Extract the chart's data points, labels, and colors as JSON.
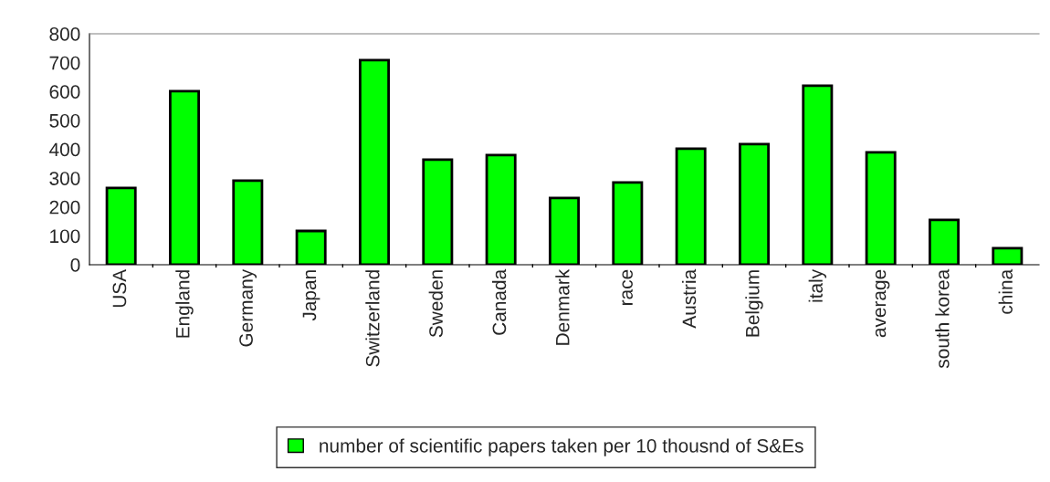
{
  "chart_data": {
    "type": "bar",
    "categories": [
      "USA",
      "England",
      "Germany",
      "Japan",
      "Switzerland",
      "Sweden",
      "Canada",
      "Denmark",
      "race",
      "Austria",
      "Belgium",
      "italy",
      "average",
      "south korea",
      "china"
    ],
    "series": [
      {
        "name": "number of scientific papers taken per 10 thousnd of S&Es",
        "color": "#00ff00",
        "values": [
          266,
          601,
          291,
          117,
          709,
          364,
          380,
          231,
          285,
          402,
          418,
          620,
          389,
          155,
          57
        ]
      }
    ],
    "ylim": [
      0,
      800
    ],
    "yticks": [
      0,
      100,
      200,
      300,
      400,
      500,
      600,
      700,
      800
    ],
    "grid": false,
    "legend": "bottom"
  }
}
